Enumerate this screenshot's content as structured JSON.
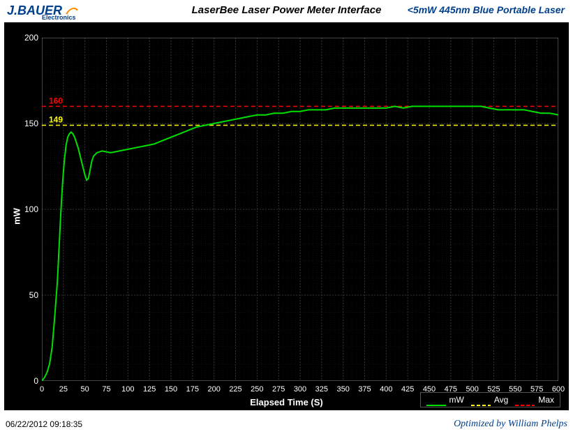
{
  "header": {
    "logo_main": "J.BAUER",
    "logo_sub": "Electronics",
    "logo_color": "#003f8c",
    "logo_accent_color": "#ff8c00",
    "title": "LaserBee Laser Power Meter Interface",
    "subtitle": "<5mW 445nm Blue Portable Laser",
    "subtitle_color": "#003f8c"
  },
  "chart": {
    "type": "line",
    "background_color": "#000000",
    "grid_color": "#333333",
    "grid_minor_color": "#1a1a1a",
    "axis_color": "#888888",
    "text_color": "#ffffff",
    "x_label": "Elapsed Time (S)",
    "y_label": "mW",
    "label_fontsize": 13,
    "xlim": [
      0,
      600
    ],
    "ylim": [
      0,
      200
    ],
    "x_ticks": [
      0,
      25,
      50,
      75,
      100,
      125,
      150,
      175,
      200,
      225,
      250,
      275,
      300,
      325,
      350,
      375,
      400,
      425,
      450,
      475,
      500,
      525,
      550,
      575,
      600
    ],
    "y_ticks": [
      0,
      50,
      100,
      150,
      200
    ],
    "y_minor_step": 10,
    "x_minor_step": 5,
    "series": {
      "name": "mW",
      "color": "#00e000",
      "line_width": 2,
      "data": [
        [
          0,
          0
        ],
        [
          3,
          2
        ],
        [
          6,
          5
        ],
        [
          9,
          10
        ],
        [
          12,
          20
        ],
        [
          15,
          38
        ],
        [
          18,
          58
        ],
        [
          20,
          78
        ],
        [
          22,
          98
        ],
        [
          24,
          115
        ],
        [
          26,
          128
        ],
        [
          28,
          137
        ],
        [
          30,
          142
        ],
        [
          32,
          144
        ],
        [
          34,
          145
        ],
        [
          36,
          144
        ],
        [
          38,
          142
        ],
        [
          40,
          139
        ],
        [
          42,
          136
        ],
        [
          44,
          132
        ],
        [
          46,
          128
        ],
        [
          48,
          124
        ],
        [
          50,
          120
        ],
        [
          52,
          117
        ],
        [
          54,
          118
        ],
        [
          56,
          123
        ],
        [
          58,
          128
        ],
        [
          60,
          131
        ],
        [
          64,
          133
        ],
        [
          70,
          134
        ],
        [
          80,
          133
        ],
        [
          90,
          134
        ],
        [
          100,
          135
        ],
        [
          110,
          136
        ],
        [
          120,
          137
        ],
        [
          130,
          138
        ],
        [
          140,
          140
        ],
        [
          150,
          142
        ],
        [
          160,
          144
        ],
        [
          170,
          146
        ],
        [
          180,
          148
        ],
        [
          190,
          149
        ],
        [
          200,
          150
        ],
        [
          210,
          151
        ],
        [
          220,
          152
        ],
        [
          230,
          153
        ],
        [
          240,
          154
        ],
        [
          250,
          155
        ],
        [
          260,
          155
        ],
        [
          270,
          156
        ],
        [
          280,
          156
        ],
        [
          290,
          157
        ],
        [
          300,
          157
        ],
        [
          310,
          158
        ],
        [
          320,
          158
        ],
        [
          330,
          158
        ],
        [
          340,
          159
        ],
        [
          350,
          159
        ],
        [
          360,
          159
        ],
        [
          370,
          159
        ],
        [
          380,
          159
        ],
        [
          390,
          159
        ],
        [
          400,
          159
        ],
        [
          410,
          160
        ],
        [
          420,
          159
        ],
        [
          430,
          160
        ],
        [
          440,
          160
        ],
        [
          450,
          160
        ],
        [
          460,
          160
        ],
        [
          470,
          160
        ],
        [
          480,
          160
        ],
        [
          490,
          160
        ],
        [
          500,
          160
        ],
        [
          510,
          160
        ],
        [
          520,
          159
        ],
        [
          530,
          158
        ],
        [
          540,
          158
        ],
        [
          550,
          158
        ],
        [
          560,
          158
        ],
        [
          570,
          157
        ],
        [
          580,
          156
        ],
        [
          590,
          156
        ],
        [
          600,
          155
        ]
      ]
    },
    "reference_lines": [
      {
        "name": "Max",
        "value": 160,
        "color": "#ff0000",
        "dash": "6,4",
        "label": "160",
        "label_color": "#ff0000"
      },
      {
        "name": "Avg",
        "value": 149,
        "color": "#ffff00",
        "dash": "6,4",
        "label": "149",
        "label_color": "#ffff00"
      }
    ],
    "legend": {
      "position": "bottom-right",
      "border_color": "#555555",
      "items": [
        {
          "label": "mW",
          "color": "#00e000",
          "style": "solid"
        },
        {
          "label": "Avg",
          "color": "#ffff00",
          "style": "dashed"
        },
        {
          "label": "Max",
          "color": "#ff0000",
          "style": "dashed"
        }
      ]
    }
  },
  "footer": {
    "timestamp": "06/22/2012 09:18:35",
    "attribution": "Optimized by William Phelps"
  }
}
